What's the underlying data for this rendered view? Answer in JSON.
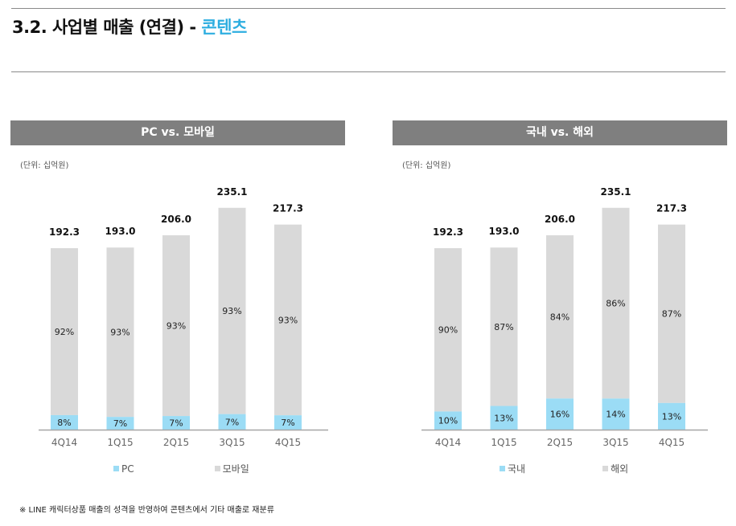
{
  "header": {
    "title_main": "3.2. 사업별 매출 (연결) - ",
    "title_accent": "콘텐츠"
  },
  "footnote": "※ LINE 캐릭터상품 매출의 성격을 반영하여 콘텐츠에서 기타 매출로 재분류",
  "colors": {
    "accent": "#2eaee0",
    "panel_header": "#7f7f7f",
    "series_light_blue": "#9bdcf5",
    "series_gray": "#d9d9d9",
    "axis": "#a6a6a6"
  },
  "chart_data": [
    {
      "type": "bar",
      "stacked": true,
      "title": "PC vs. 모바일",
      "unit_label": "(단위: 십억원)",
      "categories": [
        "4Q14",
        "1Q15",
        "2Q15",
        "3Q15",
        "4Q15"
      ],
      "totals": [
        192.3,
        193.0,
        206.0,
        235.1,
        217.3
      ],
      "total_labels": [
        "192.3",
        "193.0",
        "206.0",
        "235.1",
        "217.3"
      ],
      "series": [
        {
          "name": "PC",
          "color": "#9bdcf5",
          "percent": [
            8,
            7,
            7,
            7,
            7
          ],
          "labels": [
            "8%",
            "7%",
            "7%",
            "7%",
            "7%"
          ]
        },
        {
          "name": "모바일",
          "color": "#d9d9d9",
          "percent": [
            92,
            93,
            93,
            93,
            93
          ],
          "labels": [
            "92%",
            "93%",
            "93%",
            "93%",
            "93%"
          ]
        }
      ],
      "ylim": [
        0,
        250
      ],
      "grid": false,
      "legend": "bottom"
    },
    {
      "type": "bar",
      "stacked": true,
      "title": "국내 vs. 해외",
      "unit_label": "(단위: 십억원)",
      "categories": [
        "4Q14",
        "1Q15",
        "2Q15",
        "3Q15",
        "4Q15"
      ],
      "totals": [
        192.3,
        193.0,
        206.0,
        235.1,
        217.3
      ],
      "total_labels": [
        "192.3",
        "193.0",
        "206.0",
        "235.1",
        "217.3"
      ],
      "series": [
        {
          "name": "국내",
          "color": "#9bdcf5",
          "percent": [
            10,
            13,
            16,
            14,
            13
          ],
          "labels": [
            "10%",
            "13%",
            "16%",
            "14%",
            "13%"
          ]
        },
        {
          "name": "해외",
          "color": "#d9d9d9",
          "percent": [
            90,
            87,
            84,
            86,
            87
          ],
          "labels": [
            "90%",
            "87%",
            "84%",
            "86%",
            "87%"
          ]
        }
      ],
      "ylim": [
        0,
        250
      ],
      "grid": false,
      "legend": "bottom"
    }
  ]
}
